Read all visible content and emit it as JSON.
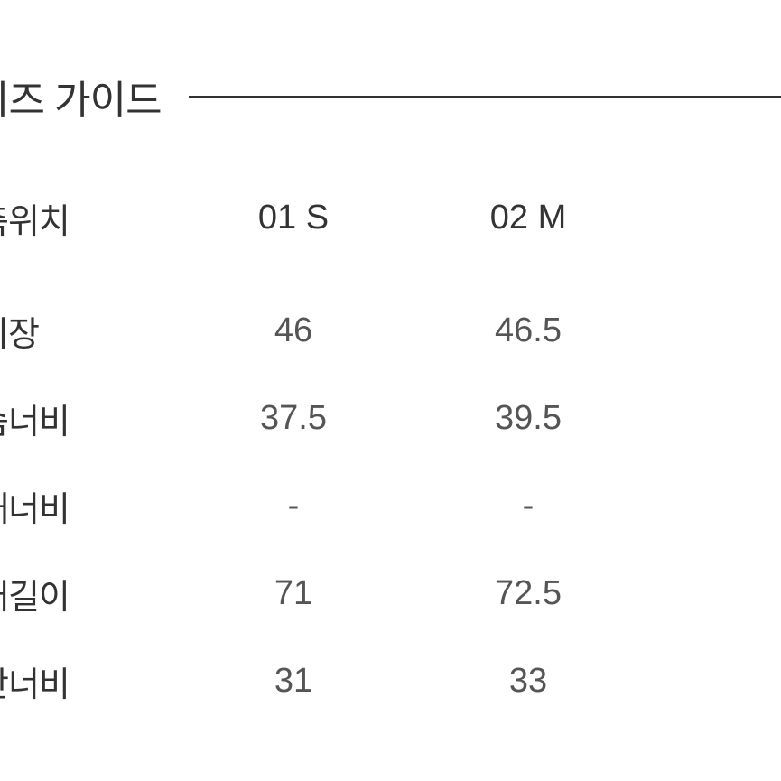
{
  "title": "이즈 가이드",
  "table": {
    "header": {
      "label": "측위치",
      "col1": "01 S",
      "col2": "02 M"
    },
    "rows": [
      {
        "label": "기장",
        "col1": "46",
        "col2": "46.5"
      },
      {
        "label": "슴너비",
        "col1": "37.5",
        "col2": "39.5"
      },
      {
        "label": "깨너비",
        "col1": "-",
        "col2": "-"
      },
      {
        "label": "매길이",
        "col1": "71",
        "col2": "72.5"
      },
      {
        "label": "단너비",
        "col1": "31",
        "col2": "33"
      }
    ]
  },
  "styling": {
    "background_color": "#ffffff",
    "text_color": "#333333",
    "value_color": "#555555",
    "divider_color": "#333333",
    "title_fontsize": 44,
    "header_fontsize": 38,
    "cell_fontsize": 38
  }
}
